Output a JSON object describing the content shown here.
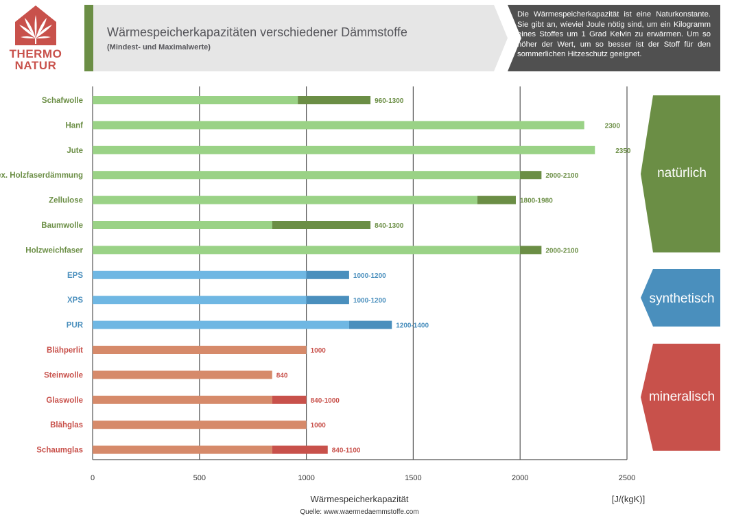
{
  "logo": {
    "line1": "THERMO",
    "line2": "NATUR"
  },
  "header": {
    "title": "Wärmespeicherkapazitäten verschiedener Dämmstoffe",
    "subtitle": "(Mindest- und Maximalwerte)"
  },
  "info": {
    "text": "Die Wärmespeicherkapazität ist eine Naturkonstante. Sie gibt an, wieviel Joule nötig sind, um ein Kilogramm eines Stoffes um 1 Grad Kelvin zu erwärmen. Um so höher der Wert, um so besser ist der Stoff für den sommerlichen Hitzeschutz geeignet."
  },
  "colors": {
    "natural_light": "#9ad286",
    "natural_dark": "#6b8e45",
    "natural_text": "#6b8e45",
    "synthetic_light": "#6fb7e3",
    "synthetic_dark": "#4a8fbd",
    "synthetic_text": "#4a8fbd",
    "mineral_light": "#d68a6a",
    "mineral_dark": "#c8514b",
    "mineral_text": "#c8514b",
    "header_gray": "#e6e6e6",
    "info_gray": "#505050"
  },
  "chart_data": {
    "type": "bar",
    "orientation": "horizontal",
    "xlabel": "Wärmespeicherkapazität",
    "unit": "[J/(kgK)]",
    "xlim": [
      0,
      2500
    ],
    "xticks": [
      0,
      500,
      1000,
      1500,
      2000,
      2500
    ],
    "grid": true,
    "source": "Quelle: www.waermedaemmstoffe.com",
    "categories": [
      {
        "name": "Schafwolle",
        "group": "natural",
        "min": 960,
        "max": 1300,
        "label": "960-1300"
      },
      {
        "name": "Hanf",
        "group": "natural",
        "min": 2300,
        "max": 2300,
        "label": "2300"
      },
      {
        "name": "Jute",
        "group": "natural",
        "min": 2350,
        "max": 2350,
        "label": "2350"
      },
      {
        "name": "flex. Holzfaserdämmung",
        "group": "natural",
        "min": 2000,
        "max": 2100,
        "label": "2000-2100"
      },
      {
        "name": "Zellulose",
        "group": "natural",
        "min": 1800,
        "max": 1980,
        "label": "1800-1980"
      },
      {
        "name": "Baumwolle",
        "group": "natural",
        "min": 840,
        "max": 1300,
        "label": "840-1300"
      },
      {
        "name": "Holzweichfaser",
        "group": "natural",
        "min": 2000,
        "max": 2100,
        "label": "2000-2100"
      },
      {
        "name": "EPS",
        "group": "synthetic",
        "min": 1000,
        "max": 1200,
        "label": "1000-1200"
      },
      {
        "name": "XPS",
        "group": "synthetic",
        "min": 1000,
        "max": 1200,
        "label": "1000-1200"
      },
      {
        "name": "PUR",
        "group": "synthetic",
        "min": 1200,
        "max": 1400,
        "label": "1200-1400"
      },
      {
        "name": "Blähperlit",
        "group": "mineral",
        "min": 1000,
        "max": 1000,
        "label": "1000"
      },
      {
        "name": "Steinwolle",
        "group": "mineral",
        "min": 840,
        "max": 840,
        "label": "840"
      },
      {
        "name": "Glaswolle",
        "group": "mineral",
        "min": 840,
        "max": 1000,
        "label": "840-1000"
      },
      {
        "name": "Blähglas",
        "group": "mineral",
        "min": 1000,
        "max": 1000,
        "label": "1000"
      },
      {
        "name": "Schaumglas",
        "group": "mineral",
        "min": 840,
        "max": 1100,
        "label": "840-1100"
      }
    ],
    "groups": [
      {
        "key": "natural",
        "label": "natürlich"
      },
      {
        "key": "synthetic",
        "label": "synthetisch"
      },
      {
        "key": "mineral",
        "label": "mineralisch"
      }
    ]
  }
}
